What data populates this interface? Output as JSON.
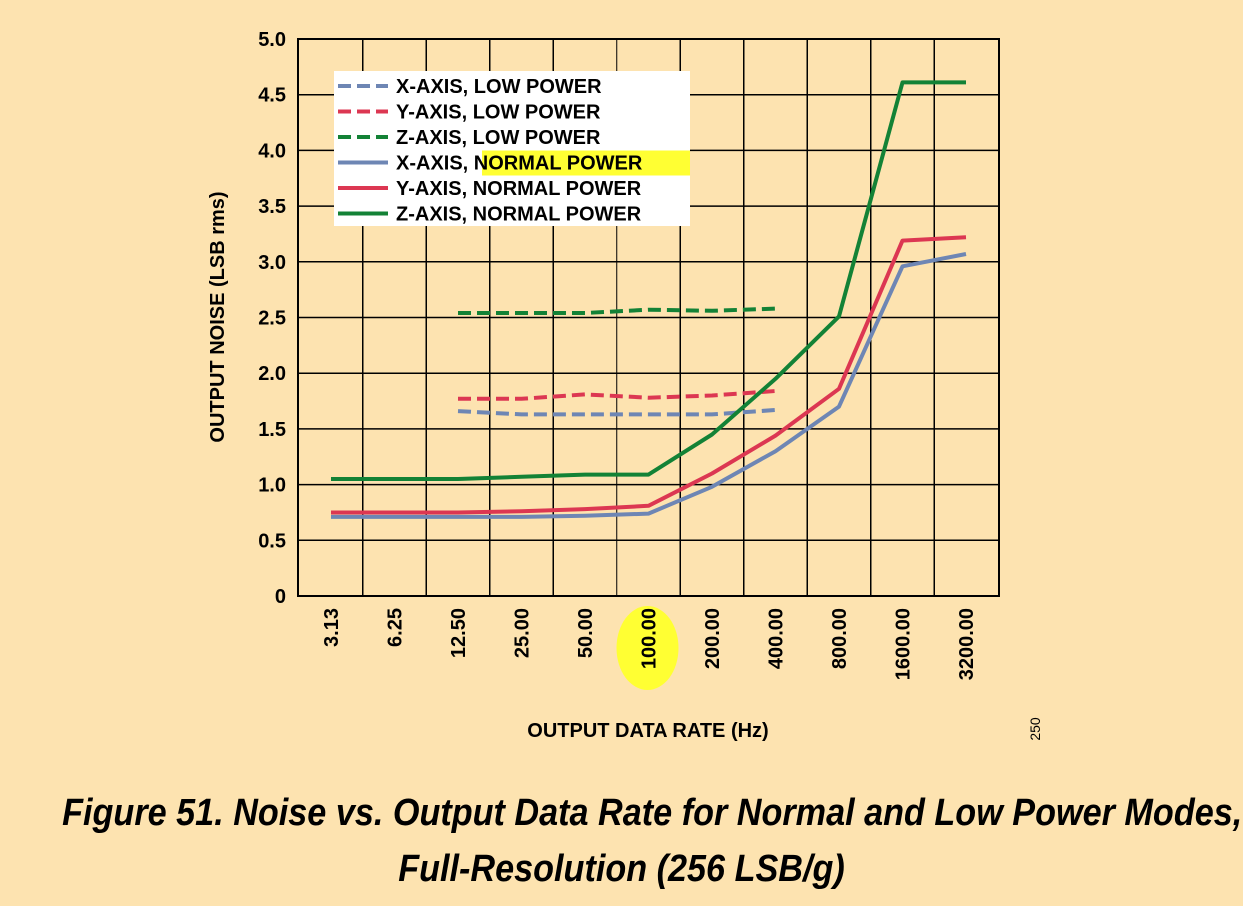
{
  "caption": {
    "line1": "Figure 51. Noise vs. Output Data Rate for Normal and Low Power Modes,",
    "line2": "Full-Resolution (256 LSB/g)"
  },
  "figure_number": "250",
  "chart_data": {
    "type": "line",
    "xlabel": "OUTPUT DATA RATE (Hz)",
    "ylabel": "OUTPUT NOISE (LSB rms)",
    "categories": [
      "3.13",
      "6.25",
      "12.50",
      "25.00",
      "50.00",
      "100.00",
      "200.00",
      "400.00",
      "800.00",
      "1600.00",
      "3200.00"
    ],
    "highlighted_category": "100.00",
    "highlight_color": "#ffff33",
    "ylim": [
      0,
      5.0
    ],
    "yticks": [
      "0",
      "0.5",
      "1.0",
      "1.5",
      "2.0",
      "2.5",
      "3.0",
      "3.5",
      "4.0",
      "4.5",
      "5.0"
    ],
    "grid": true,
    "legend_placement": "top-left",
    "series": [
      {
        "name": "X-AXIS, LOW POWER",
        "name_prefix": "X-AXIS,",
        "name_suffix": "LOW POWER",
        "dashed": true,
        "color": "#6e86b4",
        "values": [
          null,
          null,
          1.66,
          1.63,
          1.63,
          1.63,
          1.63,
          1.67,
          null,
          null,
          null
        ]
      },
      {
        "name": "Y-AXIS, LOW POWER",
        "name_prefix": "Y-AXIS,",
        "name_suffix": "LOW POWER",
        "dashed": true,
        "color": "#dc3752",
        "values": [
          null,
          null,
          1.77,
          1.77,
          1.81,
          1.78,
          1.8,
          1.84,
          null,
          null,
          null
        ]
      },
      {
        "name": "Z-AXIS, LOW POWER",
        "name_prefix": "Z-AXIS,",
        "name_suffix": "LOW POWER",
        "dashed": true,
        "color": "#138236",
        "values": [
          null,
          null,
          2.54,
          2.54,
          2.54,
          2.57,
          2.56,
          2.58,
          null,
          null,
          null
        ]
      },
      {
        "name": "X-AXIS, NORMAL POWER",
        "name_prefix": "X-AXIS,",
        "name_suffix": "NORMAL POWER",
        "suffix_highlighted": true,
        "dashed": false,
        "color": "#6e86b4",
        "values": [
          0.71,
          0.71,
          0.71,
          0.71,
          0.72,
          0.74,
          0.98,
          1.3,
          1.7,
          2.96,
          3.07
        ]
      },
      {
        "name": "Y-AXIS, NORMAL POWER",
        "name_prefix": "Y-AXIS,",
        "name_suffix": "NORMAL POWER",
        "dashed": false,
        "color": "#dc3752",
        "values": [
          0.75,
          0.75,
          0.75,
          0.76,
          0.78,
          0.81,
          1.1,
          1.44,
          1.86,
          3.19,
          3.22
        ]
      },
      {
        "name": "Z-AXIS, NORMAL POWER",
        "name_prefix": "Z-AXIS,",
        "name_suffix": "NORMAL POWER",
        "dashed": false,
        "color": "#138236",
        "values": [
          1.05,
          1.05,
          1.05,
          1.07,
          1.09,
          1.09,
          1.45,
          1.95,
          2.51,
          4.61,
          4.61
        ]
      }
    ]
  }
}
